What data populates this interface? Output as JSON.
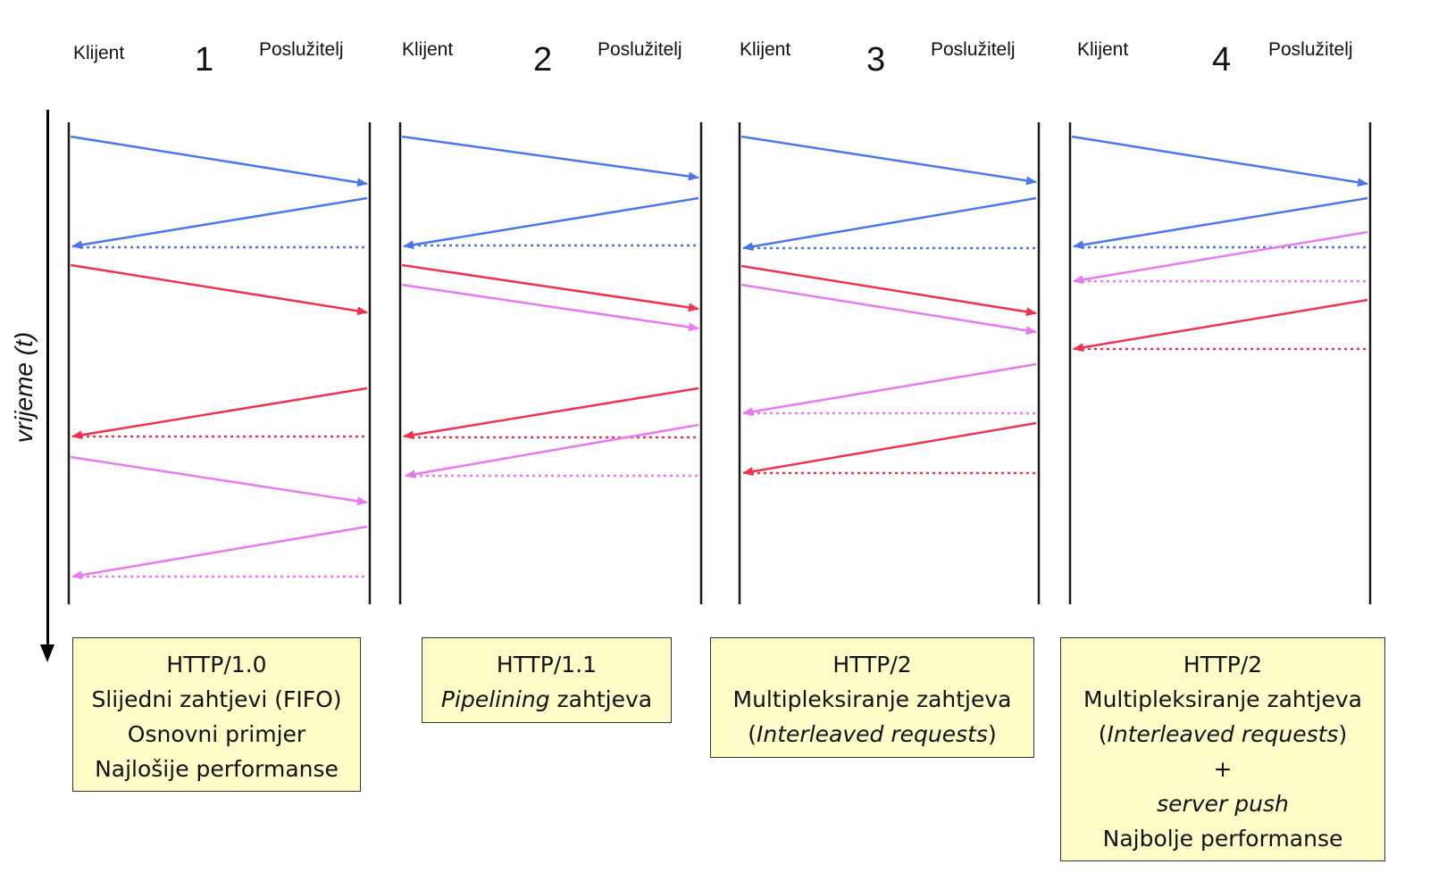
{
  "columns": [
    {
      "number": "1",
      "client_label": "Klijent",
      "server_label": "Poslužitelj"
    },
    {
      "number": "2",
      "client_label": "Klijent",
      "server_label": "Poslužitelj"
    },
    {
      "number": "3",
      "client_label": "Klijent",
      "server_label": "Poslužitelj"
    },
    {
      "number": "4",
      "client_label": "Klijent",
      "server_label": "Poslužitelj"
    }
  ],
  "time_axis_label": "vrijeme (t)",
  "boxes": {
    "b1": {
      "line1": "HTTP/1.0",
      "line2": "Slijedni zahtjevi (FIFO)",
      "line3": "Osnovni primjer",
      "line4": "Najlošije performanse"
    },
    "b2": {
      "line1": "HTTP/1.1",
      "line2_italic": "Pipelining",
      "line2_rest": " zahtjeva"
    },
    "b3": {
      "line1": "HTTP/2",
      "line2": "Multipleksiranje zahtjeva",
      "paren_open": "(",
      "line3_italic": "Interleaved requests",
      "paren_close": ")"
    },
    "b4": {
      "line1": "HTTP/2",
      "line2": "Multipleksiranje zahtjeva",
      "paren_open": "(",
      "line3_italic": "Interleaved requests",
      "paren_close": ")",
      "line4": "+",
      "line5_italic": "server push",
      "line6": "Najbolje performanse"
    }
  },
  "colors": {
    "blue": "#4a76f0",
    "red": "#f0324e",
    "pink": "#e879f2",
    "lifeline": "#1a1a1a"
  }
}
